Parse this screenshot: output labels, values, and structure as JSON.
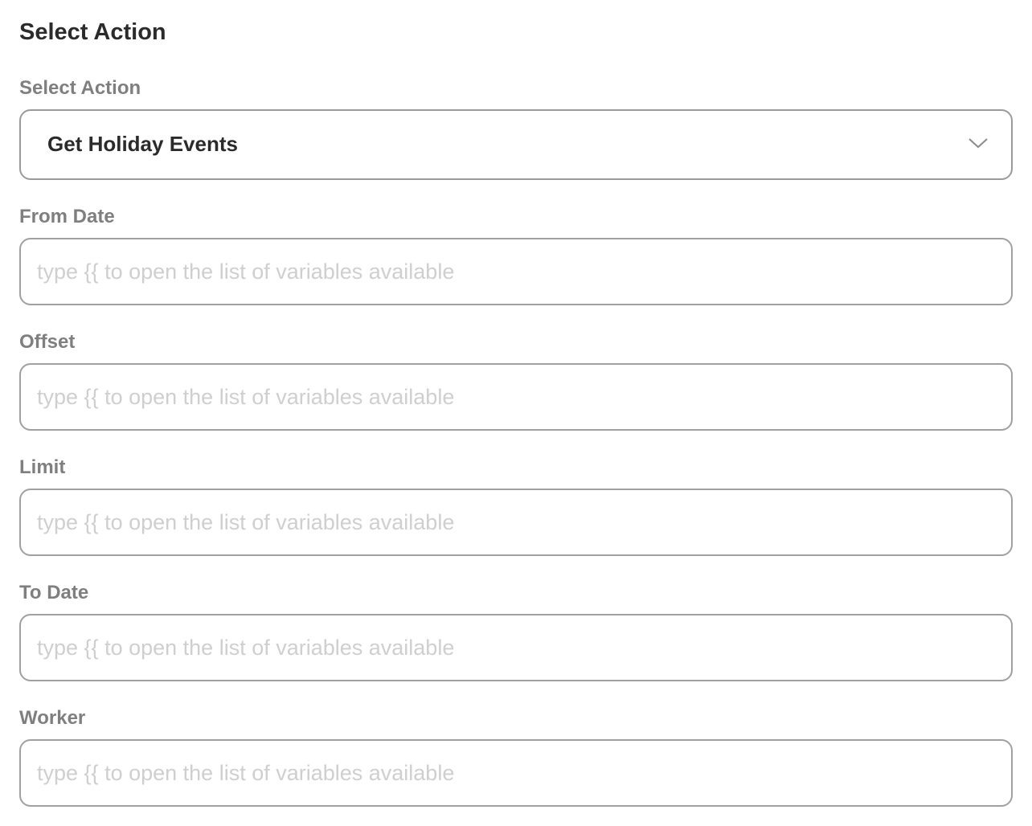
{
  "header": {
    "title": "Select Action"
  },
  "action": {
    "label": "Select Action",
    "value": "Get Holiday Events",
    "icon": "chevron-down-icon"
  },
  "fields": [
    {
      "label": "From Date",
      "value": "",
      "placeholder": "type {{ to open the list of variables available"
    },
    {
      "label": "Offset",
      "value": "",
      "placeholder": "type {{ to open the list of variables available"
    },
    {
      "label": "Limit",
      "value": "",
      "placeholder": "type {{ to open the list of variables available"
    },
    {
      "label": "To Date",
      "value": "",
      "placeholder": "type {{ to open the list of variables available"
    },
    {
      "label": "Worker",
      "value": "",
      "placeholder": "type {{ to open the list of variables available"
    }
  ]
}
